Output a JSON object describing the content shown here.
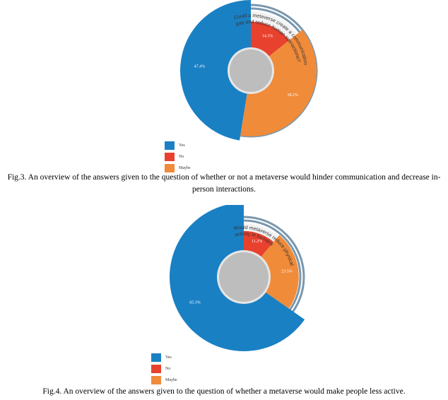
{
  "chart_data": [
    {
      "type": "pie",
      "question": "Could a metaverse create a communication gap and reduce human interactions?",
      "categories": [
        "Yes",
        "No",
        "Maybe"
      ],
      "values": [
        47.4,
        14.3,
        38.2
      ],
      "labels": [
        "47.4%",
        "14.3%",
        "38.2%"
      ],
      "colors": [
        "#1a80c4",
        "#e8412e",
        "#f08b3a"
      ],
      "legend": "bottom-left",
      "caption": "Fig.3. An overview of the answers given to the question of whether or not a metaverse would hinder communication and decrease in-person interactions."
    },
    {
      "type": "pie",
      "question": "Would metaverse reduce physical activity in humans",
      "categories": [
        "Yes",
        "No",
        "Maybe"
      ],
      "values": [
        65.3,
        11.2,
        23.5
      ],
      "labels": [
        "65.3%",
        "11.2%",
        "23.5%"
      ],
      "colors": [
        "#1a80c4",
        "#e8412e",
        "#f08b3a"
      ],
      "legend": "bottom-left",
      "caption": "Fig.4. An overview of the answers given to the question of whether a metaverse would make people less active."
    }
  ]
}
